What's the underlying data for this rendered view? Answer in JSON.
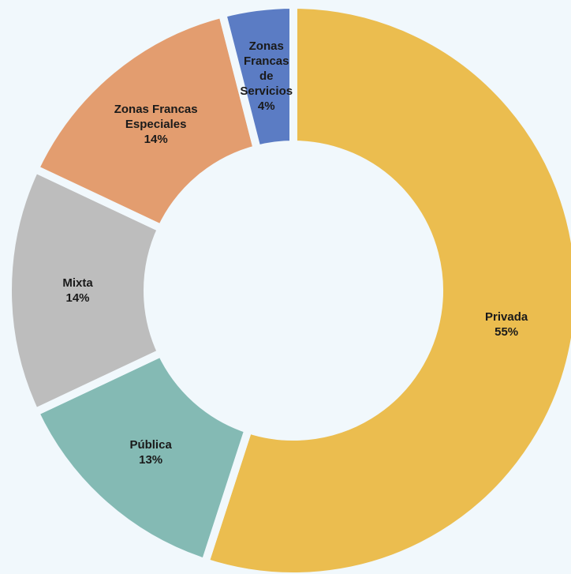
{
  "chart_data": {
    "type": "donut",
    "categories": [
      "Privada",
      "Pública",
      "Mixta",
      "Zonas Francas Especiales",
      "Zonas Francas de Servicios"
    ],
    "values": [
      55,
      13,
      14,
      14,
      4
    ],
    "value_labels": [
      "55%",
      "13%",
      "14%",
      "14%",
      "4%"
    ],
    "colors": [
      "#ebbd4f",
      "#84bab4",
      "#bdbdbd",
      "#e39d6f",
      "#5b7cc4"
    ]
  }
}
